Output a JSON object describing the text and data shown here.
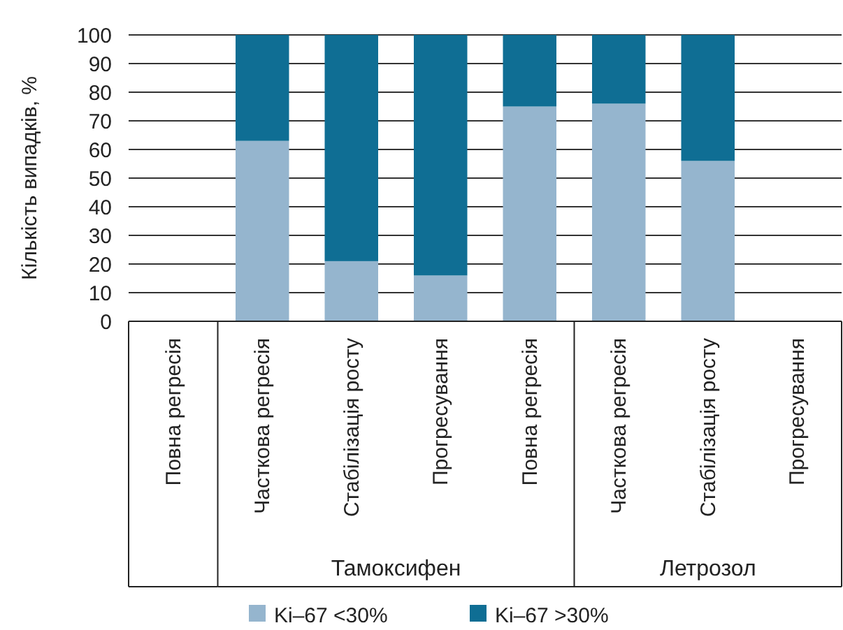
{
  "chart_data": {
    "type": "bar",
    "stacked": true,
    "ylabel": "Кількість випадків, %",
    "categories": [
      "Повна регресія",
      "Часткова регресія",
      "Стабілізація росту",
      "Прогресування",
      "Повна регресія",
      "Часткова регресія",
      "Стабілізація росту",
      "Прогресування"
    ],
    "series": [
      {
        "name": "Ki–67 <30%",
        "color": "#95b5ce",
        "values": [
          0,
          63,
          21,
          16,
          75,
          76,
          56,
          0
        ]
      },
      {
        "name": "Ki–67 >30%",
        "color": "#0f6e94",
        "values": [
          0,
          37,
          79,
          84,
          25,
          24,
          44,
          0
        ]
      }
    ],
    "ylim": [
      0,
      100
    ],
    "yticks": [
      0,
      10,
      20,
      30,
      40,
      50,
      60,
      70,
      80,
      90,
      100
    ],
    "grid": "y",
    "legend": "bottom",
    "annotations": [
      "Тамоксифен",
      "Летрозол"
    ]
  }
}
